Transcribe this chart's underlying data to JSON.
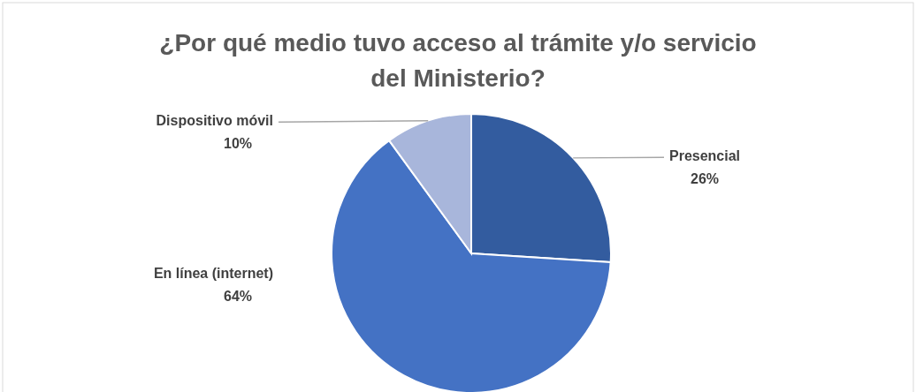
{
  "chart_data": {
    "type": "pie",
    "title": "¿Por qué medio tuvo acceso al trámite y/o servicio del Ministerio?",
    "categories": [
      "Presencial",
      "En línea (internet)",
      "Dispositivo móvil"
    ],
    "values": [
      26,
      64,
      10
    ],
    "colors": [
      "#335c9f",
      "#4472c4",
      "#a8b6db"
    ],
    "value_labels": [
      "26%",
      "64%",
      "10%"
    ]
  }
}
